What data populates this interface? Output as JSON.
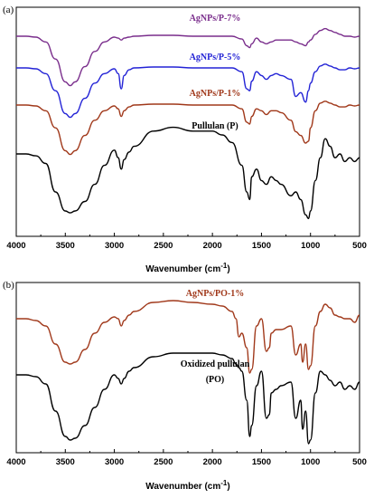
{
  "figure": {
    "panels": [
      {
        "label": "(a)",
        "chart_data": {
          "type": "line",
          "xlabel": "Wavenumber (cm",
          "xlabel_sup": "-1",
          "xlabel_suffix": ")",
          "xlim": [
            4000,
            500
          ],
          "x_reversed": true,
          "ylabel": "",
          "grid": false,
          "x_ticks": [
            "4000",
            "3500",
            "3000",
            "2500",
            "2000",
            "1500",
            "1000",
            "500"
          ],
          "series": [
            {
              "name": "AgNPs/P-7%",
              "color": "#7a2e8c",
              "x": [
                4000,
                3900,
                3800,
                3700,
                3600,
                3500,
                3450,
                3400,
                3300,
                3200,
                3100,
                3000,
                2960,
                2930,
                2900,
                2850,
                2800,
                2600,
                2400,
                2200,
                2000,
                1900,
                1800,
                1700,
                1650,
                1620,
                1600,
                1550,
                1500,
                1450,
                1400,
                1350,
                1300,
                1200,
                1150,
                1100,
                1050,
                1020,
                1000,
                950,
                900,
                850,
                800,
                750,
                700,
                650,
                600,
                550,
                500
              ],
              "y": [
                0.0,
                0.0,
                -0.5,
                -3,
                -12,
                -24,
                -26,
                -24,
                -16,
                -8,
                -3,
                -0.5,
                -1,
                -2,
                -1,
                -0.5,
                0,
                0.5,
                0.5,
                0,
                0,
                0,
                0,
                -1.5,
                -5,
                -6,
                -4,
                -1,
                -3,
                -4,
                -3,
                -2,
                -2,
                -2,
                -3,
                -4,
                -5,
                -3,
                -2,
                1,
                3,
                4,
                3,
                2,
                1,
                0,
                0,
                -0.5,
                0
              ]
            },
            {
              "name": "AgNPs/P-5%",
              "color": "#2323d6",
              "x": [
                4000,
                3900,
                3800,
                3700,
                3600,
                3500,
                3450,
                3400,
                3300,
                3200,
                3100,
                3000,
                2960,
                2930,
                2900,
                2850,
                2800,
                2600,
                2400,
                2200,
                2000,
                1900,
                1800,
                1700,
                1650,
                1620,
                1600,
                1550,
                1500,
                1450,
                1400,
                1350,
                1300,
                1200,
                1150,
                1100,
                1050,
                1020,
                1000,
                950,
                900,
                850,
                800,
                750,
                700,
                650,
                600,
                550,
                500
              ],
              "y": [
                0.0,
                0.0,
                -0.5,
                -3,
                -12,
                -24,
                -26,
                -24,
                -16,
                -8,
                -3,
                -0.5,
                -3,
                -11,
                -4,
                -1,
                0,
                0.5,
                0.5,
                0,
                0,
                0,
                0,
                -2,
                -11,
                -12,
                -7,
                -2,
                -4,
                -6,
                -4,
                -3,
                -4,
                -6,
                -15,
                -13,
                -18,
                -12,
                -8,
                -2,
                1,
                2,
                1,
                0,
                -1,
                -1,
                0,
                -0.5,
                0
              ]
            },
            {
              "name": "AgNPs/P-1%",
              "color": "#a0381a",
              "x": [
                4000,
                3900,
                3800,
                3700,
                3600,
                3500,
                3450,
                3400,
                3300,
                3200,
                3100,
                3000,
                2960,
                2930,
                2900,
                2850,
                2800,
                2600,
                2400,
                2200,
                2000,
                1900,
                1800,
                1700,
                1650,
                1620,
                1600,
                1550,
                1500,
                1450,
                1400,
                1350,
                1300,
                1200,
                1150,
                1100,
                1050,
                1020,
                1000,
                950,
                900,
                850,
                800,
                750,
                700,
                650,
                600,
                550,
                500
              ],
              "y": [
                0.0,
                0.0,
                -0.5,
                -3,
                -12,
                -24,
                -26,
                -24,
                -16,
                -8,
                -3,
                -0.5,
                -2,
                -6,
                -3,
                -1,
                0,
                0.5,
                0.5,
                0,
                0,
                0,
                0,
                -2,
                -9,
                -10,
                -6,
                -2,
                -3,
                -5,
                -3,
                -3,
                -4,
                -8,
                -14,
                -16,
                -20,
                -19,
                -12,
                -3,
                1,
                2,
                1,
                0,
                -1,
                -1,
                0,
                -0.5,
                0
              ]
            },
            {
              "name": "Pullulan (P)",
              "color": "#000000",
              "x": [
                4000,
                3900,
                3800,
                3700,
                3600,
                3500,
                3450,
                3400,
                3300,
                3200,
                3100,
                3000,
                2960,
                2930,
                2900,
                2850,
                2800,
                2600,
                2400,
                2200,
                2000,
                1900,
                1800,
                1700,
                1650,
                1620,
                1600,
                1550,
                1500,
                1450,
                1400,
                1350,
                1300,
                1200,
                1150,
                1100,
                1050,
                1020,
                1000,
                950,
                900,
                850,
                800,
                750,
                700,
                650,
                600,
                550,
                500
              ],
              "y": [
                0,
                0,
                -1,
                -5,
                -20,
                -30,
                -31,
                -30,
                -25,
                -16,
                -6,
                2,
                -2,
                -8,
                -3,
                1,
                4,
                12,
                14,
                12,
                12,
                10,
                6,
                -6,
                -20,
                -24,
                -12,
                -8,
                -14,
                -16,
                -12,
                -14,
                -16,
                -22,
                -20,
                -24,
                -32,
                -34,
                -30,
                -14,
                -2,
                8,
                4,
                -2,
                0,
                -4,
                -2,
                -4,
                -2
              ]
            }
          ]
        }
      },
      {
        "label": "(b)",
        "chart_data": {
          "type": "line",
          "xlabel": "Wavenumber (cm",
          "xlabel_sup": "-1",
          "xlabel_suffix": ")",
          "xlim": [
            4000,
            500
          ],
          "x_reversed": true,
          "ylabel": "",
          "grid": false,
          "x_ticks": [
            "4000",
            "3500",
            "3000",
            "2500",
            "2000",
            "1500",
            "1000",
            "500"
          ],
          "series": [
            {
              "name": "AgNPs/PO-1%",
              "color": "#a0381a",
              "x": [
                4000,
                3900,
                3800,
                3700,
                3600,
                3500,
                3450,
                3400,
                3300,
                3200,
                3100,
                3000,
                2960,
                2930,
                2900,
                2850,
                2800,
                2600,
                2400,
                2200,
                2000,
                1900,
                1800,
                1760,
                1730,
                1700,
                1650,
                1620,
                1600,
                1550,
                1500,
                1450,
                1420,
                1400,
                1350,
                1300,
                1200,
                1150,
                1100,
                1080,
                1050,
                1020,
                1000,
                950,
                900,
                850,
                800,
                750,
                700,
                650,
                600,
                550,
                500
              ],
              "y": [
                0,
                0,
                -1,
                -4,
                -14,
                -24,
                -25,
                -24,
                -17,
                -8,
                -2,
                1,
                0,
                -4,
                -1,
                2,
                4,
                9,
                10,
                9,
                8,
                7,
                4,
                0,
                -10,
                -8,
                -16,
                -30,
                -28,
                -4,
                0,
                -18,
                -16,
                -8,
                -6,
                -6,
                -4,
                -20,
                -14,
                -24,
                -14,
                -28,
                -26,
                -4,
                4,
                8,
                6,
                2,
                1,
                0,
                0,
                -2,
                2
              ]
            },
            {
              "name": "Oxidized pullulan",
              "name_line2": "(PO)",
              "color": "#000000",
              "x": [
                4000,
                3900,
                3800,
                3700,
                3600,
                3500,
                3450,
                3400,
                3300,
                3200,
                3100,
                3000,
                2960,
                2930,
                2900,
                2850,
                2800,
                2600,
                2400,
                2200,
                2000,
                1900,
                1800,
                1760,
                1730,
                1700,
                1650,
                1620,
                1600,
                1550,
                1500,
                1450,
                1420,
                1400,
                1350,
                1300,
                1200,
                1150,
                1100,
                1080,
                1050,
                1020,
                1000,
                950,
                900,
                850,
                800,
                750,
                700,
                650,
                600,
                550,
                500
              ],
              "y": [
                0,
                0,
                -1,
                -5,
                -20,
                -34,
                -36,
                -35,
                -28,
                -18,
                -8,
                0,
                -2,
                -5,
                -2,
                2,
                4,
                10,
                12,
                12,
                12,
                11,
                9,
                6,
                4,
                2,
                -14,
                -34,
                -28,
                -6,
                2,
                -24,
                -22,
                -10,
                -8,
                -6,
                -4,
                -24,
                -14,
                -30,
                -20,
                -38,
                -36,
                -10,
                2,
                0,
                -3,
                -6,
                -4,
                -8,
                -6,
                -8,
                -4
              ]
            }
          ]
        }
      }
    ]
  }
}
